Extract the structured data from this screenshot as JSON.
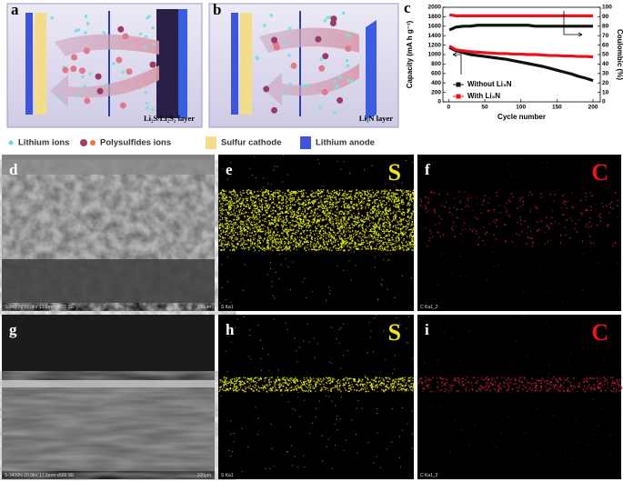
{
  "schematic_a": {
    "label": "a",
    "layer": "Li₂S/Li₂S₂ layer"
  },
  "schematic_b": {
    "label": "b",
    "layer": "Li₃N layer"
  },
  "legend": [
    "Lithium ions",
    "Polysulfides ions",
    "Sulfur cathode",
    "Lithium anode"
  ],
  "chart_data": {
    "type": "line",
    "label": "c",
    "x_label": "Cycle number",
    "y_label": "Capacity (mA h g⁻¹)",
    "y2_label": "Coulombic (%)",
    "x": [
      1,
      10,
      20,
      30,
      40,
      50,
      60,
      70,
      80,
      90,
      100,
      110,
      120,
      130,
      140,
      150,
      160,
      170,
      180,
      190,
      200
    ],
    "xlim": [
      -8,
      210
    ],
    "xticks": [
      0,
      50,
      100,
      150,
      200
    ],
    "ylim": [
      0,
      2000
    ],
    "yticks": [
      0,
      200,
      400,
      600,
      800,
      1000,
      1200,
      1400,
      1600,
      1800,
      2000
    ],
    "y2lim": [
      0,
      100
    ],
    "y2ticks": [
      0,
      10,
      20,
      30,
      40,
      50,
      60,
      70,
      80,
      90,
      100
    ],
    "series": [
      {
        "name": "Without Li₃N",
        "color": "#111111",
        "values": [
          1150,
          1080,
          1040,
          1000,
          980,
          960,
          940,
          920,
          900,
          870,
          840,
          810,
          780,
          750,
          710,
          670,
          630,
          590,
          540,
          500,
          450
        ]
      },
      {
        "name": "With Li₃N",
        "color": "#e8141c",
        "values": [
          1180,
          1100,
          1080,
          1060,
          1050,
          1040,
          1030,
          1020,
          1020,
          1010,
          1010,
          1000,
          1000,
          990,
          980,
          980,
          970,
          970,
          960,
          960,
          950
        ]
      },
      {
        "color": "#111111",
        "axis": "y2",
        "values": [
          76,
          79,
          80,
          80,
          81,
          81,
          81,
          81,
          81,
          81,
          81,
          81,
          80,
          80,
          80,
          80,
          80,
          80,
          80,
          80,
          80
        ]
      },
      {
        "color": "#e8141c",
        "axis": "y2",
        "values": [
          92,
          91,
          91,
          91,
          91,
          91,
          91,
          91,
          91,
          91,
          91,
          91,
          91,
          91,
          91,
          91,
          91,
          91,
          91,
          91,
          91
        ]
      }
    ]
  },
  "images": [
    {
      "label": "d",
      "caption": "S-3400N 15.0kV 13.6mm x500 SE",
      "scale": "100μm"
    },
    {
      "label": "e",
      "element": "S",
      "caption": "S Ka1"
    },
    {
      "label": "f",
      "element": "C",
      "caption": "C Ka1_2"
    },
    {
      "label": "g",
      "caption": "S-3400N 20.0kV 17.6mm x500 SE",
      "scale": "100μm"
    },
    {
      "label": "h",
      "element": "S",
      "caption": "S Ka1"
    },
    {
      "label": "i",
      "element": "C",
      "caption": "C Ka1_2"
    }
  ]
}
